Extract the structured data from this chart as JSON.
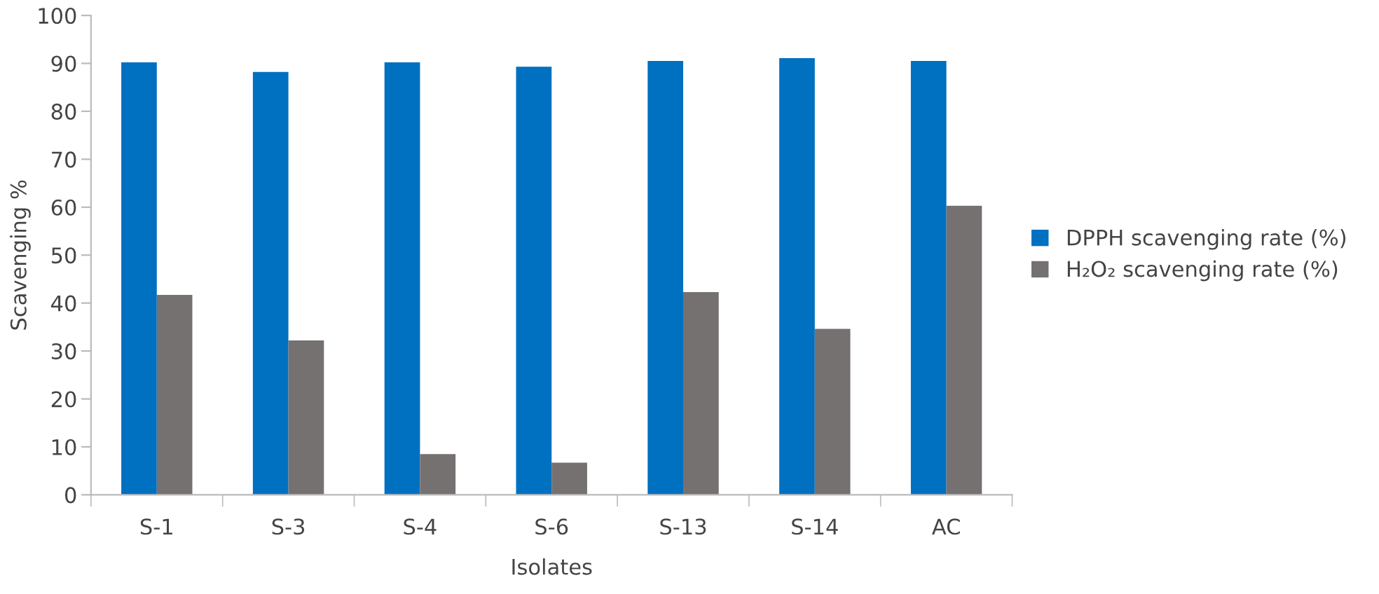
{
  "chart_data": {
    "type": "bar",
    "xlabel": "Isolates",
    "ylabel": "Scavenging %",
    "categories": [
      "S-1",
      "S-3",
      "S-4",
      "S-6",
      "S-13",
      "S-14",
      "AC"
    ],
    "series": [
      {
        "name": "DPPH scavenging rate (%)",
        "color": "#0070c0",
        "values": [
          90.2,
          88.2,
          90.2,
          89.3,
          90.5,
          91.1,
          90.5
        ]
      },
      {
        "name": "H₂O₂ scavenging rate (%)",
        "color": "#767171",
        "values": [
          41.7,
          32.2,
          8.5,
          6.7,
          42.3,
          34.6,
          60.3
        ]
      }
    ],
    "ylim": [
      0,
      100
    ],
    "yticks": [
      0,
      10,
      20,
      30,
      40,
      50,
      60,
      70,
      80,
      90,
      100
    ],
    "grid": false,
    "legend": "right"
  }
}
